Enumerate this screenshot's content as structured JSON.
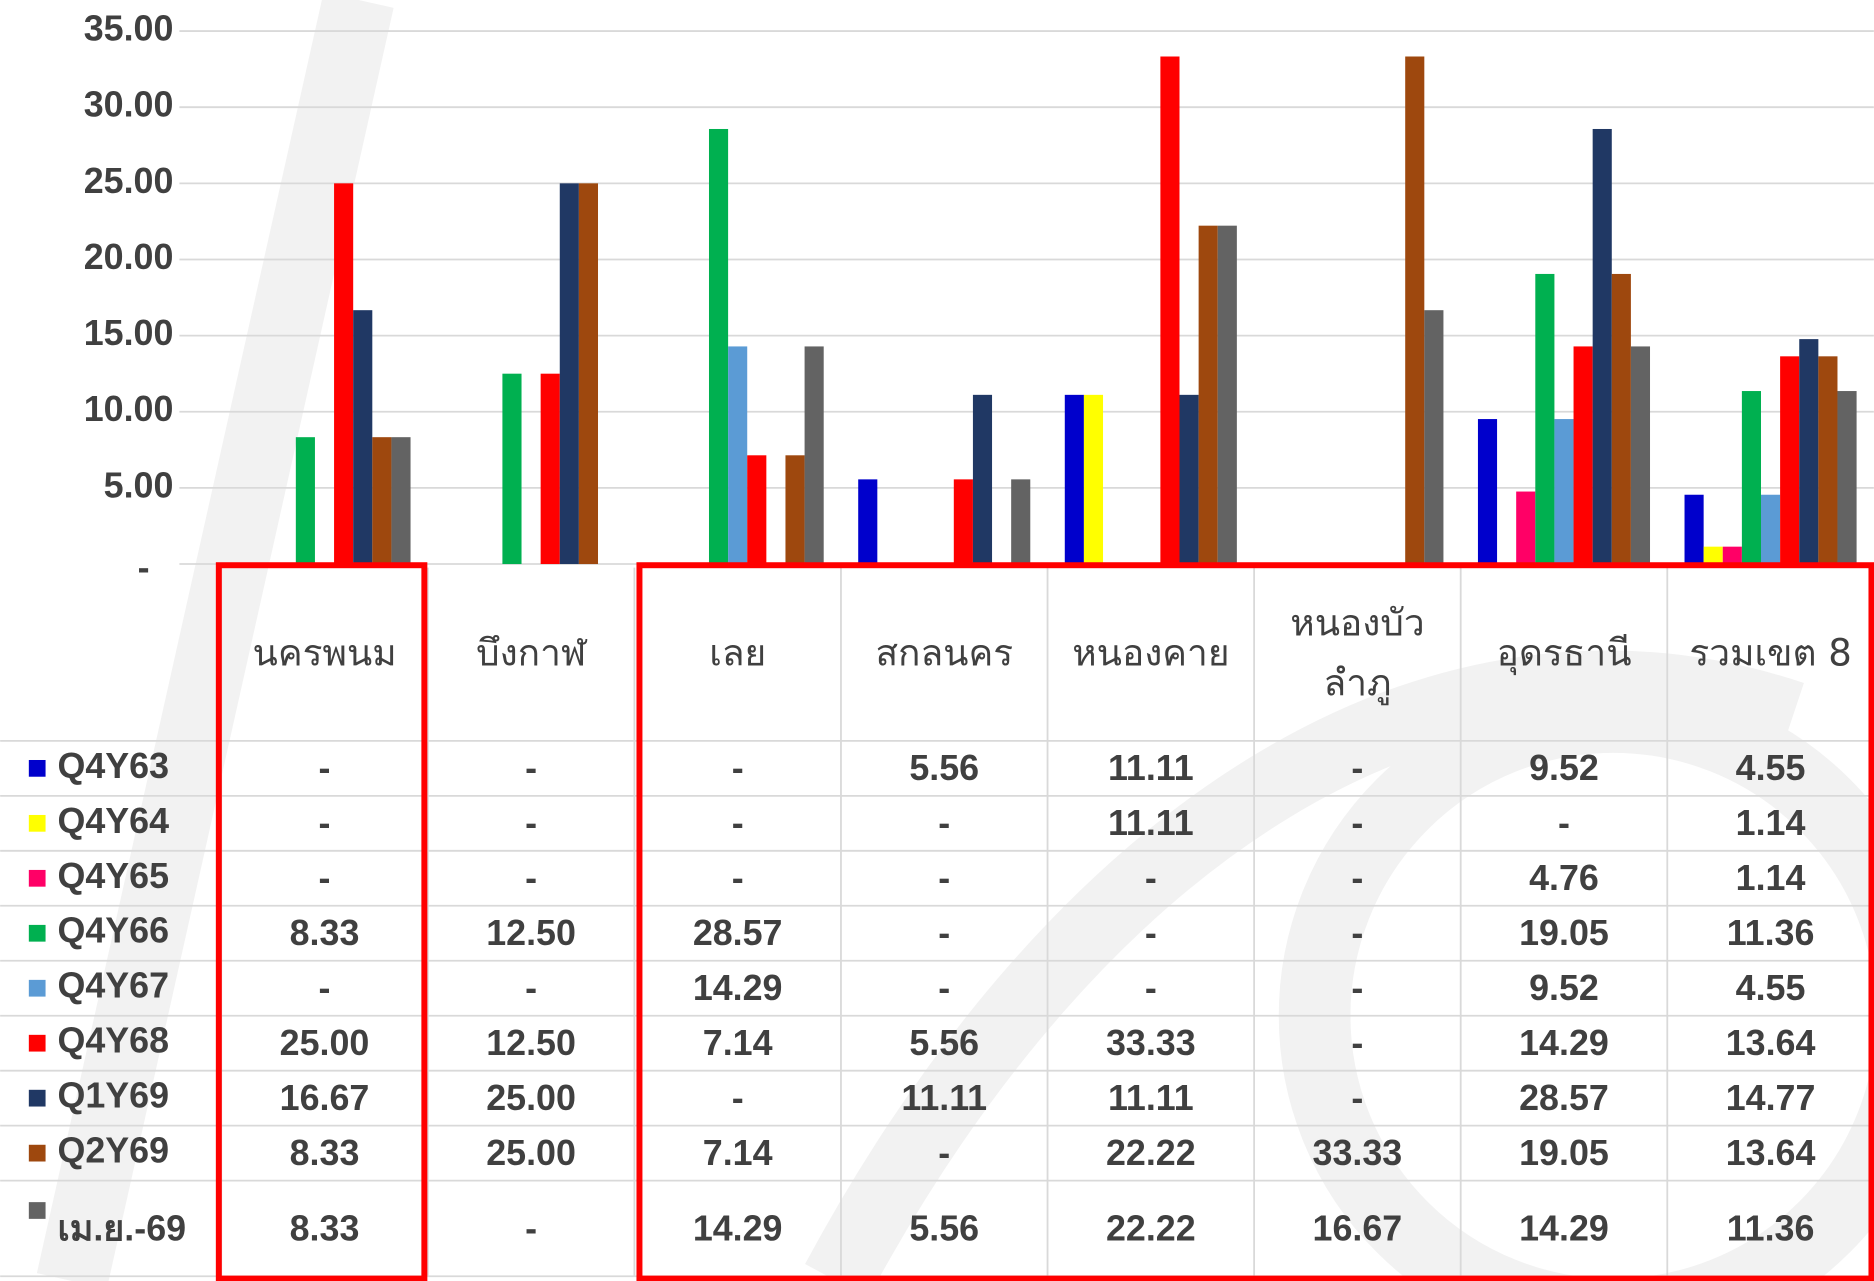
{
  "chart_data": {
    "type": "bar",
    "categories": [
      "นครพนม",
      "บึงกาฬ",
      "เลย",
      "สกลนคร",
      "หนองคาย",
      "หนองบัว ลำภู",
      "อุดรธานี",
      "รวมเขต 8"
    ],
    "ylim": [
      0,
      35
    ],
    "yticks": [
      {
        "value": 0,
        "label": "-"
      },
      {
        "value": 5,
        "label": "5.00"
      },
      {
        "value": 10,
        "label": "10.00"
      },
      {
        "value": 15,
        "label": "15.00"
      },
      {
        "value": 20,
        "label": "20.00"
      },
      {
        "value": 25,
        "label": "25.00"
      },
      {
        "value": 30,
        "label": "30.00"
      },
      {
        "value": 35,
        "label": "35.00"
      }
    ],
    "grid": true,
    "series": [
      {
        "name": "Q4Y63",
        "color": "#0000cc",
        "values": [
          null,
          null,
          null,
          5.56,
          11.11,
          null,
          9.52,
          4.55
        ],
        "value_labels": [
          "-",
          "-",
          "-",
          "5.56",
          "11.11",
          "-",
          "9.52",
          "4.55"
        ]
      },
      {
        "name": "Q4Y64",
        "color": "#ffff00",
        "values": [
          null,
          null,
          null,
          null,
          11.11,
          null,
          null,
          1.14
        ],
        "value_labels": [
          "-",
          "-",
          "-",
          "-",
          "11.11",
          "-",
          "-",
          "1.14"
        ]
      },
      {
        "name": "Q4Y65",
        "color": "#ff0066",
        "values": [
          null,
          null,
          null,
          null,
          null,
          null,
          4.76,
          1.14
        ],
        "value_labels": [
          "-",
          "-",
          "-",
          "-",
          "-",
          "-",
          "4.76",
          "1.14"
        ]
      },
      {
        "name": "Q4Y66",
        "color": "#00b050",
        "values": [
          8.33,
          12.5,
          28.57,
          null,
          null,
          null,
          19.05,
          11.36
        ],
        "value_labels": [
          "8.33",
          "12.50",
          "28.57",
          "-",
          "-",
          "-",
          "19.05",
          "11.36"
        ]
      },
      {
        "name": "Q4Y67",
        "color": "#5b9bd5",
        "values": [
          null,
          null,
          14.29,
          null,
          null,
          null,
          9.52,
          4.55
        ],
        "value_labels": [
          "-",
          "-",
          "14.29",
          "-",
          "-",
          "-",
          "9.52",
          "4.55"
        ]
      },
      {
        "name": "Q4Y68",
        "color": "#ff0000",
        "values": [
          25,
          12.5,
          7.14,
          5.56,
          33.33,
          null,
          14.29,
          13.64
        ],
        "value_labels": [
          "25.00",
          "12.50",
          "7.14",
          "5.56",
          "33.33",
          "-",
          "14.29",
          "13.64"
        ]
      },
      {
        "name": "Q1Y69",
        "color": "#203864",
        "values": [
          16.67,
          25,
          null,
          11.11,
          11.11,
          null,
          28.57,
          14.77
        ],
        "value_labels": [
          "16.67",
          "25.00",
          "-",
          "11.11",
          "11.11",
          "-",
          "28.57",
          "14.77"
        ]
      },
      {
        "name": "Q2Y69",
        "color": "#9e480e",
        "values": [
          8.33,
          25,
          7.14,
          null,
          22.22,
          33.33,
          19.05,
          13.64
        ],
        "value_labels": [
          "8.33",
          "25.00",
          "7.14",
          "-",
          "22.22",
          "33.33",
          "19.05",
          "13.64"
        ]
      },
      {
        "name": "เม.ย.-69",
        "color": "#636363",
        "values": [
          8.33,
          null,
          14.29,
          5.56,
          22.22,
          16.67,
          14.29,
          11.36
        ],
        "value_labels": [
          "8.33",
          "-",
          "14.29",
          "5.56",
          "22.22",
          "16.67",
          "14.29",
          "11.36"
        ]
      }
    ]
  }
}
